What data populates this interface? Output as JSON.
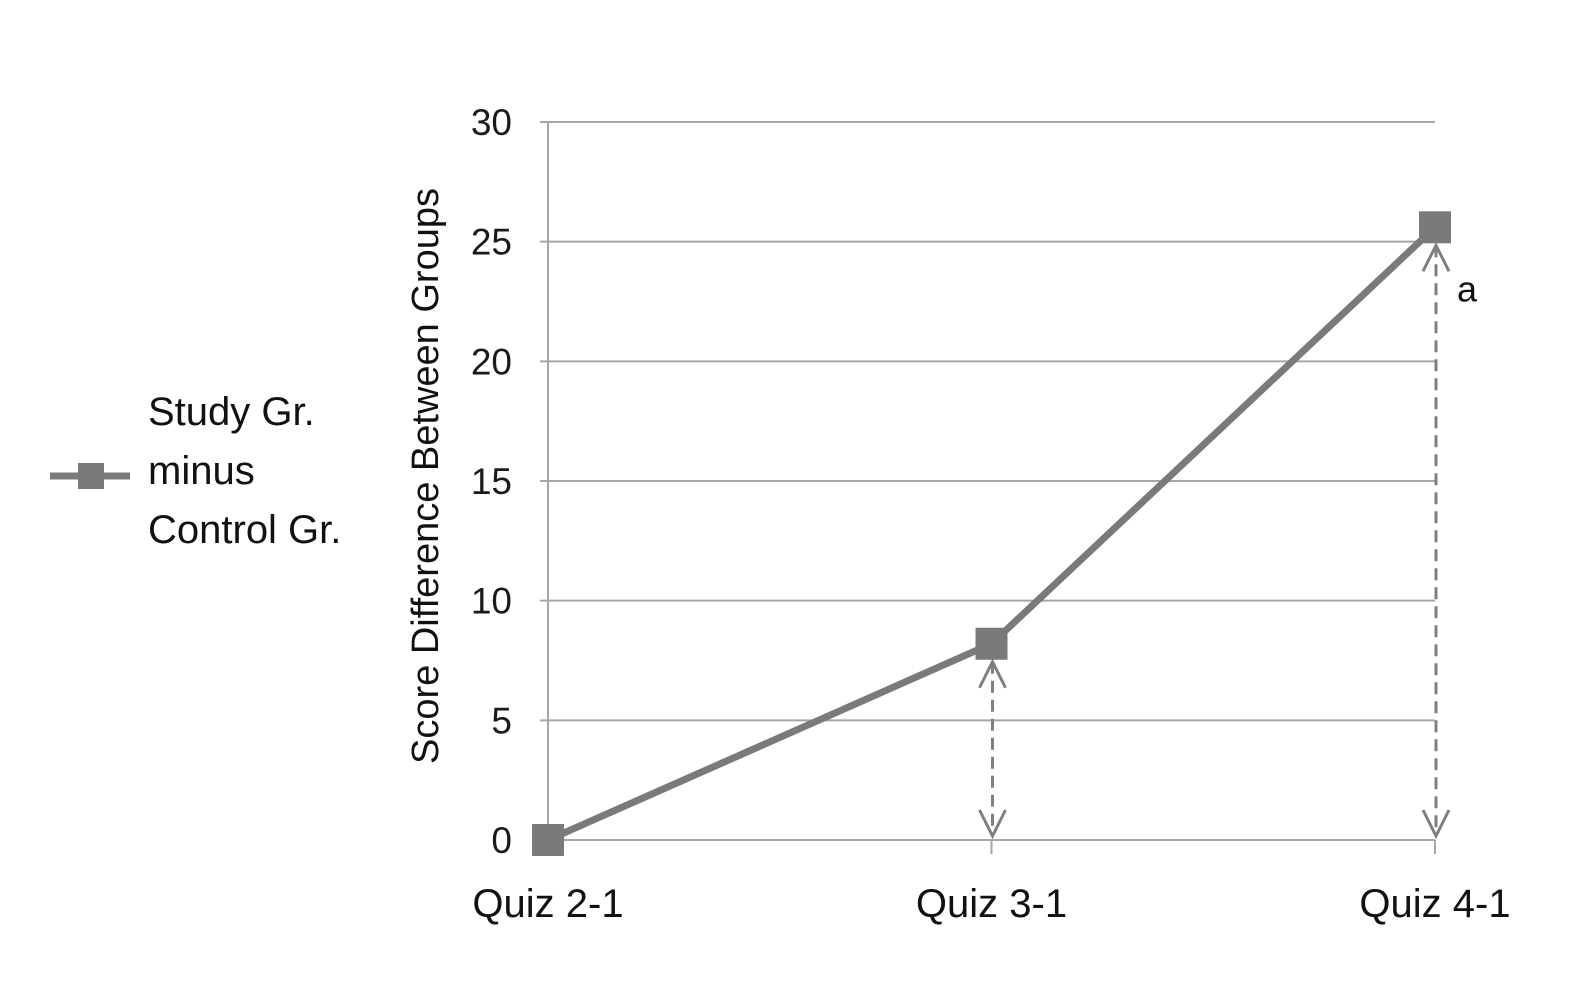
{
  "chart_data": {
    "type": "line",
    "title": "",
    "xlabel": "",
    "ylabel": "Score Difference Between Groups",
    "categories": [
      "Quiz 2-1",
      "Quiz 3-1",
      "Quiz 4-1"
    ],
    "series": [
      {
        "name": "Study Gr. minus Control Gr.",
        "values": [
          0,
          8.2,
          25.6
        ]
      }
    ],
    "legend_lines": [
      "Study Gr.",
      "minus",
      "Control Gr."
    ],
    "legend_position": "left",
    "ylim": [
      0,
      30
    ],
    "yticks": [
      0,
      5,
      10,
      15,
      20,
      25,
      30
    ],
    "grid": true,
    "annotations": [
      {
        "text": "a",
        "category": "Quiz 4-1"
      }
    ],
    "colors": {
      "series": "#7a7a7a",
      "grid": "#a6a6a6",
      "arrow": "#7f7f7f"
    }
  }
}
